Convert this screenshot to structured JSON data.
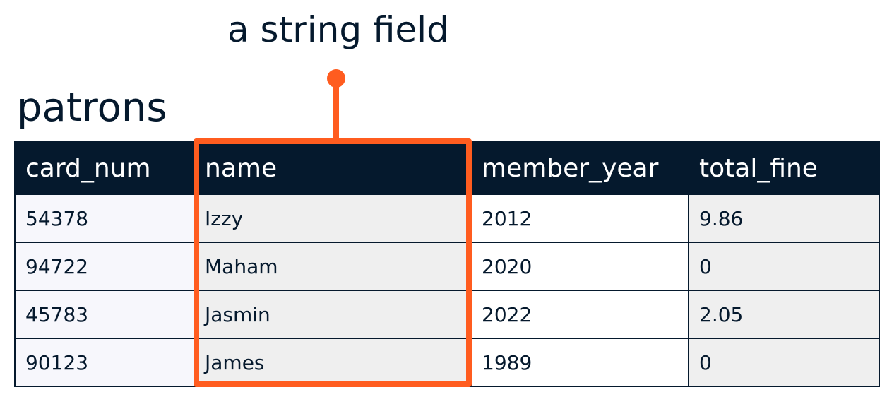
{
  "annotation": {
    "label": "a string field",
    "accent_color": "#ff5c1f"
  },
  "table": {
    "title": "patrons",
    "header_bg": "#05192d",
    "columns": [
      "card_num",
      "name",
      "member_year",
      "total_fine"
    ],
    "rows": [
      [
        "54378",
        "Izzy",
        "2012",
        "9.86"
      ],
      [
        "94722",
        "Maham",
        "2020",
        "0"
      ],
      [
        "45783",
        "Jasmin",
        "2022",
        "2.05"
      ],
      [
        "90123",
        "James",
        "1989",
        "0"
      ]
    ],
    "highlighted_column": "name"
  }
}
